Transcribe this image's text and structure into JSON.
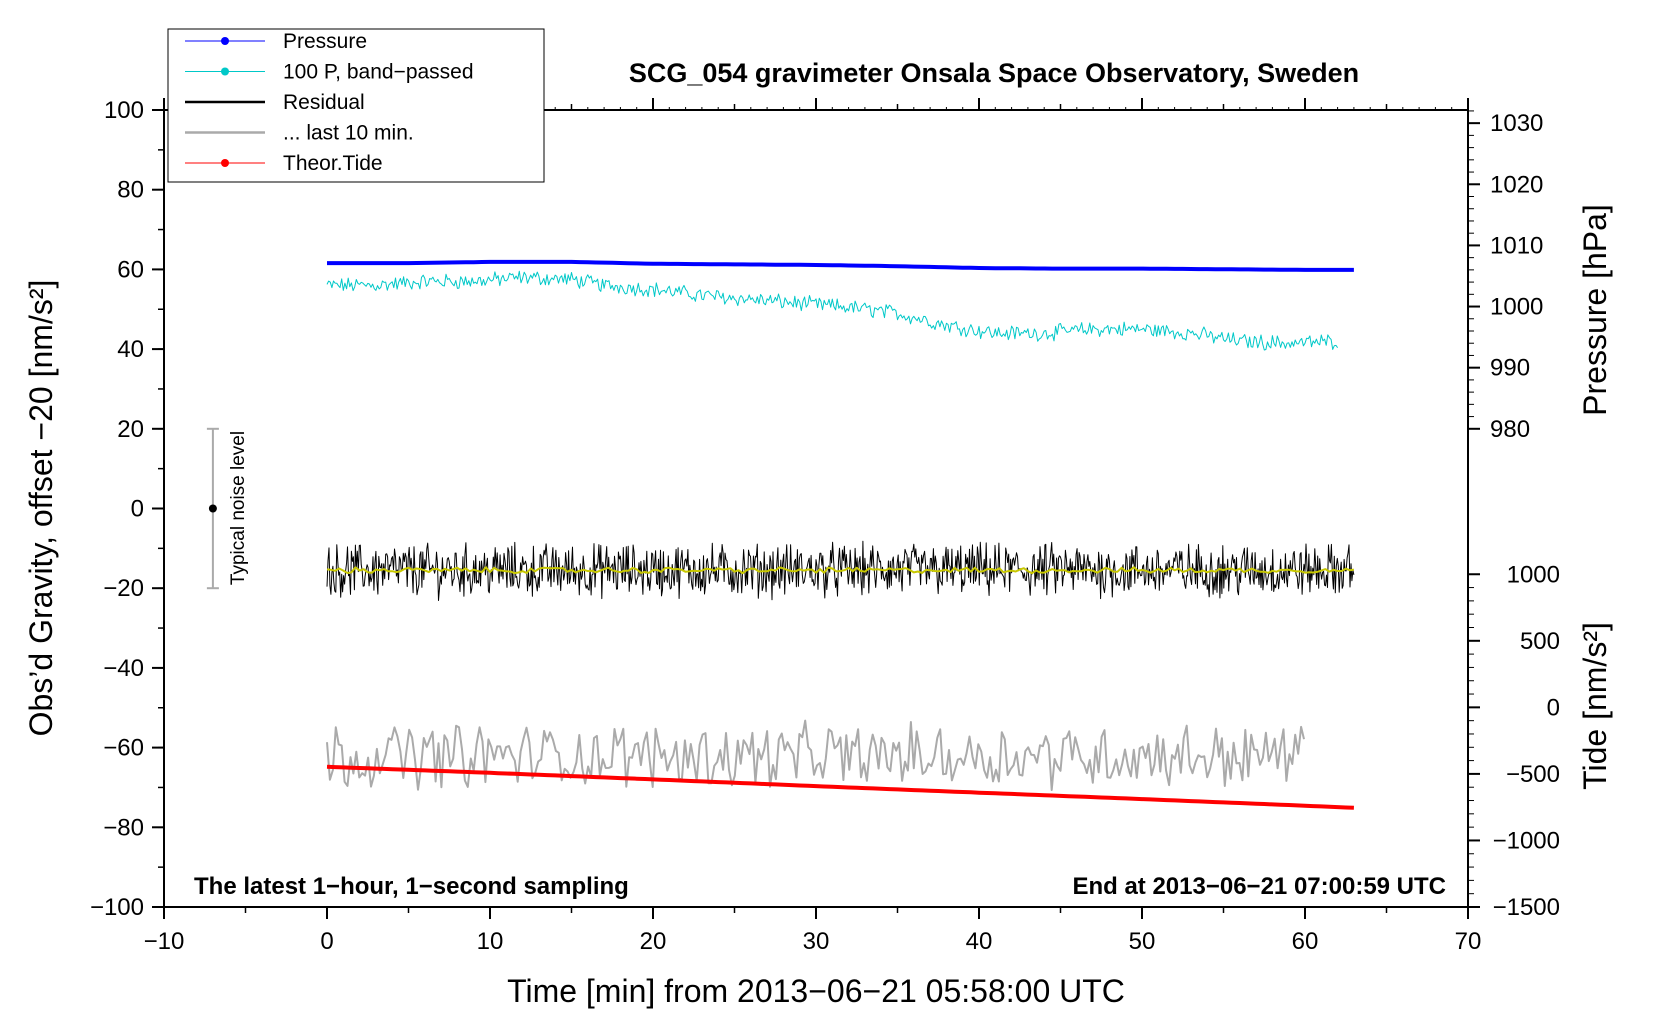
{
  "chart_data": {
    "type": "line",
    "title": "SCG_054 gravimeter Onsala Space Observatory, Sweden",
    "xlabel": "Time [min] from 2013−06−21 05:58:00 UTC",
    "ylabel_left": "Obs’d Gravity, offset −20 [nm/s²]",
    "ylabel_right_top": "Pressure [hPa]",
    "ylabel_right_bottom": "Tide [nm/s²]",
    "xlim": [
      -10,
      70
    ],
    "ylim": [
      -100,
      100
    ],
    "x_ticks": [
      -10,
      0,
      10,
      20,
      30,
      40,
      50,
      60,
      70
    ],
    "x_tick_labels": [
      "−10",
      "0",
      "10",
      "20",
      "30",
      "40",
      "50",
      "60",
      "70"
    ],
    "y_ticks": [
      100,
      80,
      60,
      40,
      20,
      0,
      -20,
      -40,
      -60,
      -80,
      -100
    ],
    "y_tick_labels": [
      "100",
      "80",
      "60",
      "40",
      "20",
      "0",
      "−20",
      "−40",
      "−60",
      "−80",
      "−100"
    ],
    "pressure_axis": {
      "ticks": [
        1030,
        1020,
        1010,
        1000,
        990,
        980
      ],
      "tick_labels": [
        "1030",
        "1020",
        "1010",
        "1000",
        "990",
        "980"
      ],
      "mapping": {
        "hpa_a": 980,
        "left_a": 20,
        "hpa_b": 1030,
        "left_b": 96.7
      }
    },
    "tide_axis": {
      "ticks": [
        1000,
        500,
        0,
        -500,
        -1000,
        -1500
      ],
      "tick_labels": [
        "1000",
        "500",
        "0",
        "−500",
        "−1000",
        "−1500"
      ],
      "mapping": {
        "tide_a": 1000,
        "left_a": -16.5,
        "tide_b": -1500,
        "left_b": -100
      }
    },
    "legend": {
      "position": "top-left",
      "entries": [
        {
          "label": "Pressure",
          "color": "#0000ff",
          "marker": true
        },
        {
          "label": "100 P, band−passed",
          "color": "#00c8c8",
          "marker": true
        },
        {
          "label": "Residual",
          "color": "#000000",
          "marker": false
        },
        {
          "label": "... last 10 min.",
          "color": "#aaaaaa",
          "marker": false
        },
        {
          "label": "Theor.Tide",
          "color": "#ff0000",
          "marker": true
        }
      ]
    },
    "annotations": {
      "bottom_left": "The latest 1−hour, 1−second sampling",
      "bottom_right": "End at 2013−06−21 07:00:59 UTC",
      "noise_label": "Typical noise level",
      "noise_bar": {
        "x": -7,
        "center": 0,
        "low": -20,
        "high": 20
      }
    },
    "series": [
      {
        "name": "Pressure",
        "color": "#0000ff",
        "axis": "pressure",
        "x": [
          0,
          5,
          10,
          15,
          20,
          25,
          30,
          35,
          40,
          45,
          50,
          55,
          60,
          63
        ],
        "values": [
          1007.1,
          1007.1,
          1007.3,
          1007.3,
          1007.0,
          1006.9,
          1006.8,
          1006.6,
          1006.3,
          1006.2,
          1006.2,
          1006.1,
          1006.0,
          1006.0
        ]
      },
      {
        "name": "100 P, band-passed",
        "color": "#00c8c8",
        "axis": "gravity",
        "noise": 1.6,
        "x": [
          0,
          3,
          6,
          9,
          12,
          15,
          17,
          20,
          23,
          26,
          29,
          32,
          35,
          38,
          41,
          44,
          47,
          50,
          53,
          56,
          59,
          62
        ],
        "values": [
          56,
          56,
          57,
          57,
          58,
          57.5,
          56,
          55,
          53.5,
          52.5,
          51.5,
          50.5,
          49,
          46,
          44,
          44,
          45,
          45,
          44,
          42,
          41.5,
          42
        ]
      },
      {
        "name": "Residual",
        "color": "#000000",
        "axis": "gravity",
        "noise": 5.5,
        "x": [
          0,
          63
        ],
        "values": [
          -15.5,
          -15.5
        ]
      },
      {
        "name": "Residual smoothed",
        "color": "#c8c800",
        "axis": "gravity",
        "noise": 0.6,
        "x": [
          0,
          63
        ],
        "values": [
          -15.5,
          -15.5
        ]
      },
      {
        "name": "... last 10 min.",
        "color": "#aaaaaa",
        "axis": "gravity",
        "noise": 6.5,
        "x": [
          0,
          60
        ],
        "values": [
          -62,
          -62
        ]
      },
      {
        "name": "Theor.Tide",
        "color": "#ff0000",
        "axis": "tide",
        "x": [
          0,
          10,
          20,
          30,
          40,
          50,
          60,
          63
        ],
        "values": [
          -447,
          -492,
          -541,
          -592,
          -641,
          -689,
          -739,
          -755
        ]
      }
    ]
  }
}
